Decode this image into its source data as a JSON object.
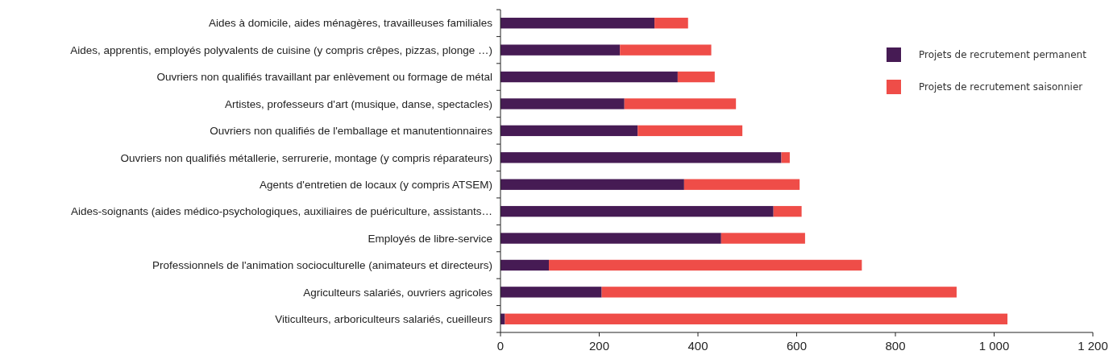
{
  "chart_data": {
    "type": "bar",
    "orientation": "horizontal",
    "stacked": true,
    "categories": [
      "Aides à domicile, aides ménagères, travailleuses familiales",
      "Aides, apprentis, employés polyvalents de cuisine (y compris crêpes, pizzas, plonge …)",
      "Ouvriers non qualifiés travaillant par enlèvement ou formage de métal",
      "Artistes, professeurs d'art (musique, danse, spectacles)",
      "Ouvriers non qualifiés de l'emballage et manutentionnaires",
      "Ouvriers non qualifiés métallerie, serrurerie, montage (y compris réparateurs)",
      "Agents d'entretien de locaux (y compris ATSEM)",
      "Aides-soignants (aides médico-psychologiques, auxiliaires de puériculture, assistants…",
      "Employés de libre-service",
      "Professionnels de l'animation socioculturelle (animateurs et directeurs)",
      "Agriculteurs salariés, ouvriers agricoles",
      "Viticulteurs, arboriculteurs salariés, cueilleurs"
    ],
    "series": [
      {
        "name": "Projets de recrutement permanent",
        "color": "#461b54",
        "values": [
          312,
          242,
          359,
          251,
          278,
          569,
          372,
          553,
          447,
          98,
          205,
          9
        ]
      },
      {
        "name": "Projets de recrutement saisonnier",
        "color": "#ef4d48",
        "values": [
          68,
          185,
          75,
          226,
          212,
          17,
          234,
          57,
          170,
          634,
          719,
          1018
        ]
      }
    ],
    "xlim": [
      0,
      1200
    ],
    "xticks": [
      0,
      200,
      400,
      600,
      800,
      {
        "value": 1000,
        "label": "1 000"
      },
      {
        "value": 1200,
        "label": "1 200"
      }
    ],
    "grid": false,
    "legend": "top right"
  }
}
